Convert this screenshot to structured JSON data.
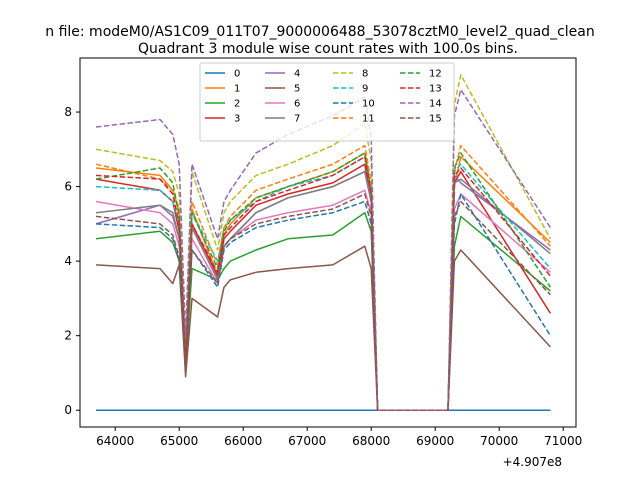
{
  "chart_data": {
    "type": "line",
    "suptitle": "n file: modeM0/AS1C09_011T07_9000006488_53078cztM0_level2_quad_clean",
    "title": "Quadrant 3 module wise count rates with 100.0s bins.",
    "xlabel": "",
    "ylabel": "",
    "x_offset_label": "+4.907e8",
    "xlim": [
      63450,
      71200
    ],
    "ylim": [
      -0.45,
      9.45
    ],
    "x_ticks": [
      64000,
      65000,
      66000,
      67000,
      68000,
      69000,
      70000,
      71000
    ],
    "x_tick_labels": [
      "64000",
      "65000",
      "66000",
      "67000",
      "68000",
      "69000",
      "70000",
      "71000"
    ],
    "y_ticks": [
      0,
      2,
      4,
      6,
      8
    ],
    "y_tick_labels": [
      "0",
      "2",
      "4",
      "6",
      "8"
    ],
    "grid": false,
    "legend_position": "top-center",
    "x": [
      63700,
      64700,
      64900,
      65000,
      65100,
      65200,
      65600,
      65700,
      65800,
      66200,
      66700,
      67400,
      67900,
      68000,
      68100,
      69200,
      69300,
      69400,
      70800
    ],
    "series": [
      {
        "name": "0",
        "color": "#1f77b4",
        "style": "solid",
        "values": [
          0,
          0,
          0,
          0,
          0,
          0,
          0,
          0,
          0,
          0,
          0,
          0,
          0,
          0,
          0,
          0,
          0,
          0,
          0
        ]
      },
      {
        "name": "1",
        "color": "#ff7f0e",
        "style": "solid",
        "values": [
          6.5,
          6.3,
          5.9,
          5.3,
          1.5,
          5.4,
          3.6,
          4.7,
          5.0,
          5.7,
          6.0,
          6.4,
          6.9,
          5.8,
          0,
          0,
          6.0,
          6.8,
          4.5
        ]
      },
      {
        "name": "2",
        "color": "#2ca02c",
        "style": "solid",
        "values": [
          4.6,
          4.8,
          4.5,
          4.0,
          1.1,
          3.8,
          3.5,
          3.8,
          4.0,
          4.3,
          4.6,
          4.7,
          5.3,
          4.8,
          0,
          0,
          4.4,
          5.2,
          3.2
        ]
      },
      {
        "name": "3",
        "color": "#d62728",
        "style": "solid",
        "values": [
          6.2,
          5.9,
          5.6,
          4.8,
          1.2,
          5.0,
          3.6,
          4.6,
          4.8,
          5.5,
          5.8,
          6.1,
          6.6,
          5.6,
          0,
          0,
          6.1,
          6.4,
          2.6
        ]
      },
      {
        "name": "4",
        "color": "#9467bd",
        "style": "solid",
        "values": [
          5.0,
          5.5,
          5.2,
          4.6,
          1.3,
          4.9,
          3.5,
          4.4,
          4.6,
          5.3,
          5.7,
          6.0,
          6.4,
          5.6,
          0,
          0,
          6.3,
          6.1,
          4.3
        ]
      },
      {
        "name": "5",
        "color": "#8c564b",
        "style": "solid",
        "values": [
          3.9,
          3.8,
          3.4,
          3.9,
          0.9,
          3.0,
          2.5,
          3.3,
          3.5,
          3.7,
          3.8,
          3.9,
          4.4,
          3.8,
          0,
          0,
          4.0,
          4.3,
          1.7
        ]
      },
      {
        "name": "6",
        "color": "#e377c2",
        "style": "solid",
        "values": [
          5.6,
          5.3,
          5.0,
          4.4,
          1.3,
          4.6,
          3.4,
          4.4,
          4.6,
          5.1,
          5.3,
          5.5,
          5.9,
          5.3,
          0,
          0,
          5.4,
          5.8,
          3.7
        ]
      },
      {
        "name": "7",
        "color": "#7f7f7f",
        "style": "solid",
        "values": [
          5.3,
          5.5,
          5.3,
          4.6,
          1.3,
          4.9,
          3.5,
          4.4,
          4.6,
          5.3,
          5.7,
          6.0,
          6.4,
          5.6,
          0,
          0,
          6.1,
          6.2,
          4.2
        ]
      },
      {
        "name": "8",
        "color": "#bcbd22",
        "style": "dashed",
        "values": [
          7.0,
          6.7,
          6.4,
          5.8,
          1.7,
          6.4,
          4.3,
          5.3,
          5.6,
          6.3,
          6.6,
          7.1,
          7.7,
          6.7,
          0,
          0,
          8.2,
          9.0,
          4.6
        ]
      },
      {
        "name": "9",
        "color": "#17becf",
        "style": "dashed",
        "values": [
          6.0,
          5.9,
          5.6,
          5.0,
          1.4,
          5.3,
          4.0,
          4.9,
          5.1,
          5.6,
          6.0,
          6.3,
          6.8,
          5.9,
          0,
          0,
          6.4,
          6.6,
          3.8
        ]
      },
      {
        "name": "10",
        "color": "#1f77b4",
        "style": "dashed",
        "values": [
          5.0,
          4.9,
          4.6,
          4.0,
          1.2,
          4.3,
          3.3,
          4.3,
          4.5,
          4.9,
          5.1,
          5.3,
          5.6,
          5.0,
          0,
          0,
          5.0,
          5.8,
          2.0
        ]
      },
      {
        "name": "11",
        "color": "#ff7f0e",
        "style": "dashed",
        "values": [
          6.6,
          6.2,
          5.9,
          5.4,
          1.5,
          5.6,
          3.9,
          4.9,
          5.2,
          5.9,
          6.2,
          6.6,
          7.1,
          6.1,
          0,
          0,
          6.4,
          7.1,
          4.4
        ]
      },
      {
        "name": "12",
        "color": "#2ca02c",
        "style": "dashed",
        "values": [
          6.2,
          6.5,
          6.1,
          5.2,
          1.4,
          5.3,
          3.8,
          4.8,
          5.1,
          5.7,
          6.0,
          6.4,
          6.9,
          5.9,
          0,
          0,
          6.5,
          6.9,
          3.3
        ]
      },
      {
        "name": "13",
        "color": "#d62728",
        "style": "dashed",
        "values": [
          6.3,
          6.2,
          5.8,
          5.0,
          1.3,
          5.0,
          3.7,
          4.7,
          4.9,
          5.6,
          5.9,
          6.3,
          6.8,
          5.8,
          0,
          0,
          6.3,
          6.5,
          3.6
        ]
      },
      {
        "name": "14",
        "color": "#9467bd",
        "style": "dashed",
        "values": [
          7.6,
          7.8,
          7.4,
          6.6,
          2.0,
          6.6,
          4.6,
          5.6,
          5.9,
          6.9,
          7.4,
          7.9,
          8.4,
          7.3,
          0,
          0,
          7.9,
          8.6,
          4.9
        ]
      },
      {
        "name": "15",
        "color": "#8c564b",
        "style": "dashed",
        "values": [
          5.2,
          5.0,
          4.7,
          4.1,
          1.2,
          4.3,
          3.4,
          4.4,
          4.6,
          5.0,
          5.2,
          5.4,
          5.8,
          5.2,
          0,
          0,
          5.2,
          5.6,
          3.1
        ]
      }
    ]
  }
}
